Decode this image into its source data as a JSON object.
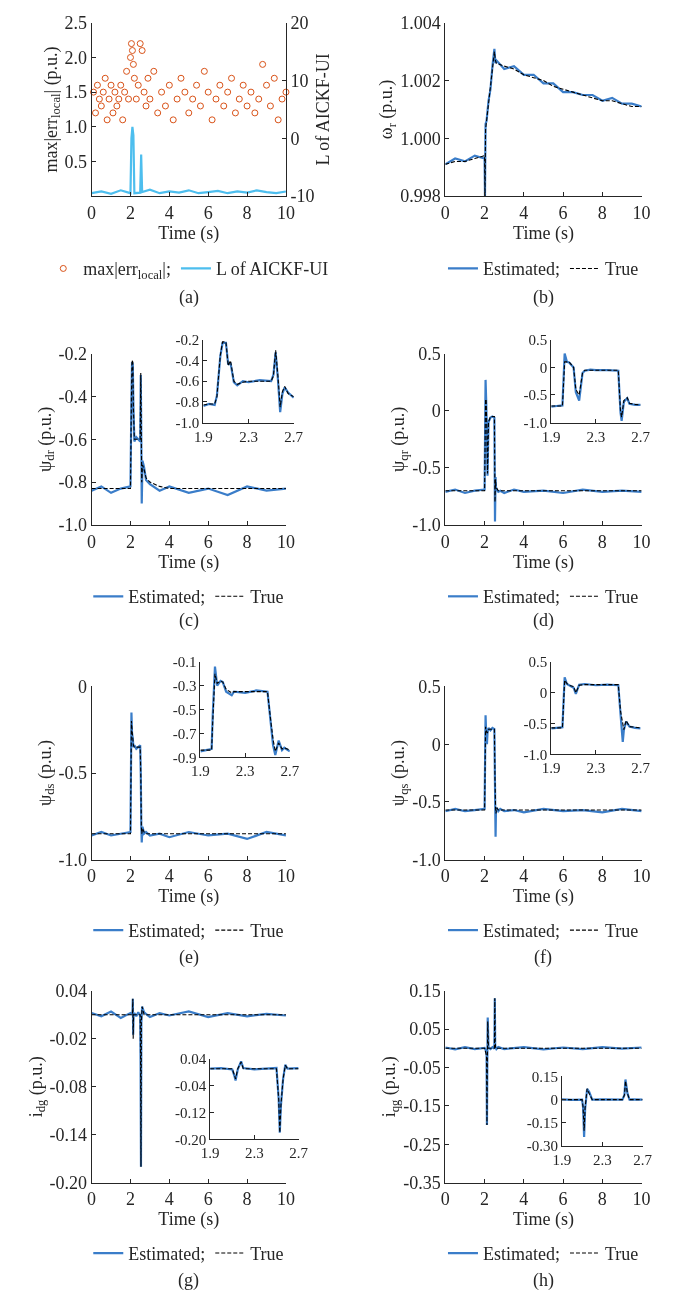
{
  "chart_data": [
    {
      "type": "line",
      "xlabel": "Time (s)",
      "ylabel": "max|err$_{local}$| (p.u.)",
      "y2label": "L of AICKF-UI",
      "xlim": [
        0,
        10
      ],
      "xticks": [
        0,
        2,
        4,
        6,
        8,
        10
      ],
      "ylim": [
        0,
        2.5
      ],
      "yticks": [
        0.5,
        {
          "value": 1,
          "label": "1.0"
        },
        1.5,
        {
          "value": 2,
          "label": "2.0"
        },
        2.5
      ],
      "y2lim": [
        -10,
        20
      ],
      "y2ticks": [
        -10,
        0,
        10,
        20
      ],
      "legend": "bottom",
      "annotations": [
        "(a)"
      ],
      "series": [
        {
          "name": "max|err$_{local}$|;",
          "type": "scatter",
          "marker": "circle",
          "color": "#d95319",
          "x": [
            0.1,
            0.2,
            0.3,
            0.4,
            0.5,
            0.6,
            0.7,
            0.8,
            0.9,
            1.0,
            1.1,
            1.2,
            1.3,
            1.4,
            1.5,
            1.6,
            1.7,
            1.8,
            1.9,
            2.0,
            2.05,
            2.1,
            2.15,
            2.2,
            2.3,
            2.4,
            2.5,
            2.6,
            2.7,
            2.8,
            2.9,
            3.0,
            3.2,
            3.4,
            3.6,
            3.8,
            4.0,
            4.2,
            4.4,
            4.6,
            4.8,
            5.0,
            5.2,
            5.4,
            5.6,
            5.8,
            6.0,
            6.2,
            6.4,
            6.6,
            6.8,
            7.0,
            7.2,
            7.4,
            7.6,
            7.8,
            8.0,
            8.2,
            8.4,
            8.6,
            8.8,
            9.0,
            9.2,
            9.4,
            9.6,
            9.8,
            10.0
          ],
          "values": [
            1.5,
            1.2,
            1.6,
            1.4,
            1.3,
            1.5,
            1.7,
            1.1,
            1.4,
            1.6,
            1.2,
            1.5,
            1.3,
            1.4,
            1.6,
            1.1,
            1.5,
            1.8,
            1.4,
            2.0,
            2.2,
            2.1,
            1.9,
            1.7,
            1.4,
            1.6,
            2.2,
            2.1,
            1.5,
            1.3,
            1.7,
            1.4,
            1.8,
            1.2,
            1.5,
            1.3,
            1.6,
            1.1,
            1.4,
            1.7,
            1.5,
            1.2,
            1.4,
            1.6,
            1.3,
            1.8,
            1.5,
            1.1,
            1.4,
            1.6,
            1.3,
            1.5,
            1.7,
            1.2,
            1.4,
            1.6,
            1.3,
            1.5,
            1.2,
            1.4,
            1.9,
            1.6,
            1.3,
            1.7,
            1.1,
            1.4,
            1.5
          ]
        },
        {
          "name": "L of AICKF-UI",
          "type": "line",
          "axis": "y2",
          "color": "#4dbeee",
          "line_style": "solid",
          "x": [
            0,
            0.5,
            1.0,
            1.5,
            1.9,
            2.0,
            2.05,
            2.1,
            2.15,
            2.2,
            2.5,
            2.55,
            2.6,
            3.0,
            3.5,
            4,
            4.5,
            5,
            5.5,
            6,
            6.5,
            7,
            7.5,
            8,
            8.5,
            9,
            9.5,
            10
          ],
          "values": [
            -9.5,
            -9.2,
            -9.6,
            -9.0,
            -9.4,
            -9.5,
            0,
            2,
            0.5,
            -9.5,
            -9.4,
            -2.8,
            -9.3,
            -8.9,
            -9.5,
            -9.2,
            -9.4,
            -9.0,
            -9.5,
            -9.3,
            -9.1,
            -9.5,
            -9.2,
            -9.4,
            -9.0,
            -9.3,
            -9.5,
            -9.2
          ]
        }
      ]
    },
    {
      "type": "line",
      "xlabel": "Time (s)",
      "ylabel": "ω$_{r}$ (p.u.)",
      "xlim": [
        0,
        10
      ],
      "xticks": [
        0,
        2,
        4,
        6,
        8,
        10
      ],
      "ylim": [
        0.998,
        1.004
      ],
      "yticks": [
        0.998,
        {
          "value": 1,
          "label": "1.000"
        },
        1.002,
        1.004
      ],
      "legend": "bottom",
      "annotations": [
        "(b)"
      ],
      "x": [
        0,
        0.5,
        1,
        1.5,
        2.0,
        2.02,
        2.05,
        2.1,
        2.2,
        2.3,
        2.4,
        2.5,
        2.55,
        2.6,
        3,
        3.5,
        4,
        4.5,
        5,
        5.5,
        6,
        6.5,
        7,
        7.5,
        8,
        8.5,
        9,
        9.5,
        10
      ],
      "series": [
        {
          "name": "Estimated;",
          "color": "#3a7dc9",
          "line_style": "solid",
          "values": [
            0.9991,
            0.9993,
            0.9992,
            0.9994,
            0.9993,
            0.998,
            1.0005,
            1.0006,
            1.0013,
            1.0017,
            1.0025,
            1.0031,
            1.0026,
            1.0027,
            1.0024,
            1.0025,
            1.0022,
            1.0022,
            1.0019,
            1.0019,
            1.0016,
            1.0016,
            1.0015,
            1.0015,
            1.0013,
            1.0014,
            1.0012,
            1.0012,
            1.0011
          ]
        },
        {
          "name": "True",
          "color": "#000000",
          "line_style": "dashed",
          "values": [
            0.9991,
            0.9992,
            0.9992,
            0.9993,
            0.9994,
            0.998,
            1.0003,
            1.0006,
            1.0012,
            1.0018,
            1.0024,
            1.003,
            1.0027,
            1.0026,
            1.0025,
            1.0024,
            1.0022,
            1.0021,
            1.002,
            1.0018,
            1.0017,
            1.0016,
            1.0015,
            1.0014,
            1.0013,
            1.0013,
            1.0012,
            1.0011,
            1.0011
          ]
        }
      ]
    },
    {
      "type": "line",
      "xlabel": "Time (s)",
      "ylabel": "ψ$_{dr}$ (p.u.)",
      "xlim": [
        0,
        10
      ],
      "xticks": [
        0,
        2,
        4,
        6,
        8,
        10
      ],
      "ylim": [
        -1,
        -0.2
      ],
      "yticks": [
        {
          "value": -1,
          "label": "-1.0"
        },
        -0.8,
        -0.6,
        -0.4,
        -0.2
      ],
      "legend": "bottom",
      "annotations": [
        "(c)"
      ],
      "x": [
        0,
        0.5,
        1,
        1.5,
        2.0,
        2.05,
        2.08,
        2.12,
        2.15,
        2.2,
        2.3,
        2.4,
        2.5,
        2.53,
        2.56,
        2.58,
        2.62,
        2.7,
        2.8,
        3,
        3.5,
        4,
        5,
        6,
        7,
        8,
        9,
        10
      ],
      "series": [
        {
          "name": "Estimated;",
          "color": "#3a7dc9",
          "line_style": "solid",
          "values": [
            -0.84,
            -0.82,
            -0.85,
            -0.83,
            -0.82,
            -0.41,
            -0.24,
            -0.25,
            -0.44,
            -0.61,
            -0.59,
            -0.6,
            -0.61,
            -0.3,
            -0.62,
            -0.9,
            -0.7,
            -0.73,
            -0.79,
            -0.81,
            -0.84,
            -0.82,
            -0.85,
            -0.83,
            -0.86,
            -0.82,
            -0.84,
            -0.83
          ]
        },
        {
          "name": "True",
          "color": "#000000",
          "line_style": "dashed",
          "values": [
            -0.83,
            -0.83,
            -0.83,
            -0.83,
            -0.83,
            -0.4,
            -0.23,
            -0.24,
            -0.45,
            -0.6,
            -0.6,
            -0.6,
            -0.6,
            -0.29,
            -0.6,
            -0.8,
            -0.72,
            -0.74,
            -0.78,
            -0.8,
            -0.82,
            -0.83,
            -0.83,
            -0.83,
            -0.83,
            -0.83,
            -0.83,
            -0.83
          ]
        }
      ]
    },
    {
      "type": "line",
      "xlim": [
        1.9,
        2.7
      ],
      "xticks": [
        1.9,
        2.3,
        2.7
      ],
      "ylim": [
        -1,
        -0.2
      ],
      "yticks": [
        {
          "value": -1,
          "label": "-1.0"
        },
        -0.8,
        -0.6,
        -0.4,
        -0.2
      ],
      "x": [
        1.9,
        1.95,
        2.0,
        2.02,
        2.05,
        2.07,
        2.1,
        2.12,
        2.14,
        2.17,
        2.2,
        2.25,
        2.3,
        2.4,
        2.5,
        2.52,
        2.54,
        2.56,
        2.58,
        2.6,
        2.62,
        2.65,
        2.7
      ],
      "series": [
        {
          "color": "#3a7dc9",
          "line_style": "solid",
          "values": [
            -0.84,
            -0.82,
            -0.83,
            -0.74,
            -0.36,
            -0.23,
            -0.23,
            -0.44,
            -0.42,
            -0.61,
            -0.64,
            -0.6,
            -0.61,
            -0.59,
            -0.6,
            -0.54,
            -0.32,
            -0.58,
            -0.9,
            -0.72,
            -0.66,
            -0.71,
            -0.76
          ]
        },
        {
          "color": "#000000",
          "line_style": "dashed",
          "values": [
            -0.83,
            -0.82,
            -0.82,
            -0.75,
            -0.35,
            -0.22,
            -0.22,
            -0.45,
            -0.4,
            -0.6,
            -0.63,
            -0.61,
            -0.6,
            -0.6,
            -0.6,
            -0.55,
            -0.3,
            -0.55,
            -0.85,
            -0.7,
            -0.65,
            -0.72,
            -0.75
          ]
        }
      ]
    },
    {
      "type": "line",
      "xlabel": "Time (s)",
      "ylabel": "ψ$_{qr}$ (p.u.)",
      "xlim": [
        0,
        10
      ],
      "xticks": [
        0,
        2,
        4,
        6,
        8,
        10
      ],
      "ylim": [
        -1,
        0.5
      ],
      "yticks": [
        {
          "value": -1,
          "label": "-1.0"
        },
        -0.5,
        0,
        0.5
      ],
      "legend": "bottom",
      "annotations": [
        "(d)"
      ],
      "x": [
        0,
        0.5,
        1,
        1.5,
        2.0,
        2.05,
        2.08,
        2.12,
        2.15,
        2.2,
        2.3,
        2.4,
        2.5,
        2.53,
        2.56,
        2.58,
        2.62,
        2.7,
        2.8,
        3,
        3.5,
        4,
        5,
        6,
        7,
        8,
        9,
        10
      ],
      "series": [
        {
          "name": "Estimated;",
          "color": "#3a7dc9",
          "line_style": "solid",
          "values": [
            -0.71,
            -0.69,
            -0.72,
            -0.7,
            -0.69,
            0.27,
            0.1,
            -0.2,
            -0.57,
            -0.1,
            -0.06,
            -0.05,
            -0.06,
            -0.97,
            -0.58,
            -0.67,
            -0.69,
            -0.71,
            -0.7,
            -0.72,
            -0.69,
            -0.71,
            -0.7,
            -0.72,
            -0.69,
            -0.71,
            -0.7,
            -0.71
          ]
        },
        {
          "name": "True",
          "color": "#000000",
          "line_style": "dashed",
          "values": [
            -0.7,
            -0.7,
            -0.7,
            -0.7,
            -0.7,
            0.1,
            0.1,
            -0.2,
            -0.55,
            -0.1,
            -0.05,
            -0.05,
            -0.05,
            -0.8,
            -0.6,
            -0.66,
            -0.68,
            -0.7,
            -0.7,
            -0.7,
            -0.7,
            -0.7,
            -0.7,
            -0.7,
            -0.7,
            -0.7,
            -0.7,
            -0.7
          ]
        }
      ]
    },
    {
      "type": "line",
      "xlim": [
        1.9,
        2.7
      ],
      "xticks": [
        1.9,
        2.3,
        2.7
      ],
      "ylim": [
        -1,
        0.5
      ],
      "yticks": [
        {
          "value": -1,
          "label": "-1.0"
        },
        -0.5,
        0,
        0.5
      ],
      "x": [
        1.9,
        1.95,
        2.0,
        2.02,
        2.04,
        2.06,
        2.1,
        2.12,
        2.15,
        2.18,
        2.2,
        2.25,
        2.3,
        2.4,
        2.5,
        2.52,
        2.53,
        2.55,
        2.58,
        2.6,
        2.65,
        2.7
      ],
      "series": [
        {
          "color": "#3a7dc9",
          "line_style": "solid",
          "values": [
            -0.71,
            -0.7,
            -0.69,
            0.25,
            0.1,
            0.09,
            0.0,
            -0.45,
            -0.6,
            -0.1,
            -0.06,
            -0.04,
            -0.05,
            -0.05,
            -0.06,
            -0.82,
            -0.97,
            -0.62,
            -0.56,
            -0.66,
            -0.68,
            -0.68
          ]
        },
        {
          "color": "#000000",
          "line_style": "dashed",
          "values": [
            -0.7,
            -0.7,
            -0.7,
            0.1,
            0.1,
            0.1,
            0.0,
            -0.4,
            -0.5,
            -0.1,
            -0.05,
            -0.05,
            -0.05,
            -0.05,
            -0.05,
            -0.8,
            -0.9,
            -0.6,
            -0.55,
            -0.65,
            -0.67,
            -0.68
          ]
        }
      ]
    },
    {
      "type": "line",
      "xlabel": "Time (s)",
      "ylabel": "ψ$_{ds}$ (p.u.)",
      "xlim": [
        0,
        10
      ],
      "xticks": [
        0,
        2,
        4,
        6,
        8,
        10
      ],
      "ylim": [
        -1,
        0
      ],
      "yticks": [
        {
          "value": -1,
          "label": "-1.0"
        },
        -0.5,
        0
      ],
      "legend": "bottom",
      "annotations": [
        "(e)"
      ],
      "x": [
        0,
        0.5,
        1,
        1.5,
        2.0,
        2.05,
        2.08,
        2.12,
        2.15,
        2.2,
        2.3,
        2.4,
        2.5,
        2.53,
        2.56,
        2.58,
        2.62,
        2.7,
        2.8,
        3,
        3.5,
        4,
        5,
        6,
        7,
        8,
        9,
        10
      ],
      "series": [
        {
          "name": "Estimated;",
          "color": "#3a7dc9",
          "line_style": "solid",
          "values": [
            -0.86,
            -0.84,
            -0.86,
            -0.85,
            -0.84,
            -0.15,
            -0.27,
            -0.3,
            -0.35,
            -0.34,
            -0.36,
            -0.35,
            -0.34,
            -0.5,
            -0.82,
            -0.9,
            -0.81,
            -0.85,
            -0.84,
            -0.86,
            -0.85,
            -0.87,
            -0.84,
            -0.86,
            -0.85,
            -0.88,
            -0.84,
            -0.86
          ]
        },
        {
          "name": "True",
          "color": "#000000",
          "line_style": "dashed",
          "values": [
            -0.85,
            -0.85,
            -0.85,
            -0.85,
            -0.85,
            -0.2,
            -0.25,
            -0.3,
            -0.34,
            -0.35,
            -0.35,
            -0.35,
            -0.35,
            -0.5,
            -0.8,
            -0.85,
            -0.82,
            -0.84,
            -0.85,
            -0.85,
            -0.85,
            -0.85,
            -0.85,
            -0.85,
            -0.85,
            -0.85,
            -0.85,
            -0.85
          ]
        }
      ]
    },
    {
      "type": "line",
      "xlim": [
        1.9,
        2.7
      ],
      "xticks": [
        1.9,
        2.3,
        2.7
      ],
      "ylim": [
        -0.9,
        -0.1
      ],
      "yticks": [
        -0.9,
        -0.7,
        -0.5,
        -0.3,
        -0.1
      ],
      "x": [
        1.9,
        1.95,
        2.0,
        2.01,
        2.03,
        2.05,
        2.08,
        2.1,
        2.13,
        2.18,
        2.2,
        2.3,
        2.4,
        2.5,
        2.53,
        2.55,
        2.57,
        2.6,
        2.63,
        2.65,
        2.7
      ],
      "series": [
        {
          "color": "#3a7dc9",
          "line_style": "solid",
          "values": [
            -0.85,
            -0.84,
            -0.83,
            -0.55,
            -0.14,
            -0.3,
            -0.26,
            -0.27,
            -0.35,
            -0.38,
            -0.35,
            -0.36,
            -0.34,
            -0.35,
            -0.62,
            -0.8,
            -0.88,
            -0.76,
            -0.84,
            -0.82,
            -0.85
          ]
        },
        {
          "color": "#000000",
          "line_style": "dashed",
          "values": [
            -0.84,
            -0.84,
            -0.84,
            -0.6,
            -0.2,
            -0.28,
            -0.26,
            -0.27,
            -0.33,
            -0.36,
            -0.35,
            -0.35,
            -0.35,
            -0.35,
            -0.6,
            -0.75,
            -0.85,
            -0.78,
            -0.83,
            -0.82,
            -0.84
          ]
        }
      ]
    },
    {
      "type": "line",
      "xlabel": "Time (s)",
      "ylabel": "ψ$_{qs}$ (p.u.)",
      "xlim": [
        0,
        10
      ],
      "xticks": [
        0,
        2,
        4,
        6,
        8,
        10
      ],
      "ylim": [
        -1,
        0.5
      ],
      "yticks": [
        {
          "value": -1,
          "label": "-1.0"
        },
        -0.5,
        0,
        0.5
      ],
      "legend": "bottom",
      "annotations": [
        "(f)"
      ],
      "x": [
        0,
        0.5,
        1,
        1.5,
        2.0,
        2.05,
        2.08,
        2.12,
        2.15,
        2.2,
        2.3,
        2.4,
        2.5,
        2.53,
        2.56,
        2.58,
        2.62,
        2.7,
        2.8,
        3,
        3.5,
        4,
        5,
        6,
        7,
        8,
        9,
        10
      ],
      "series": [
        {
          "name": "Estimated;",
          "color": "#3a7dc9",
          "line_style": "solid",
          "values": [
            -0.58,
            -0.56,
            -0.58,
            -0.57,
            -0.56,
            0.25,
            0.1,
            0.0,
            0.1,
            0.14,
            0.12,
            0.14,
            0.13,
            -0.35,
            -0.8,
            -0.58,
            -0.55,
            -0.58,
            -0.56,
            -0.58,
            -0.57,
            -0.59,
            -0.56,
            -0.58,
            -0.57,
            -0.59,
            -0.56,
            -0.58
          ]
        },
        {
          "name": "True",
          "color": "#000000",
          "line_style": "dashed",
          "values": [
            -0.57,
            -0.57,
            -0.57,
            -0.57,
            -0.57,
            0.15,
            0.12,
            0.1,
            0.1,
            0.13,
            0.13,
            0.13,
            0.13,
            -0.3,
            -0.55,
            -0.6,
            -0.55,
            -0.57,
            -0.57,
            -0.57,
            -0.57,
            -0.57,
            -0.57,
            -0.57,
            -0.57,
            -0.57,
            -0.57,
            -0.57
          ]
        }
      ]
    },
    {
      "type": "line",
      "xlim": [
        1.9,
        2.7
      ],
      "xticks": [
        1.9,
        2.3,
        2.7
      ],
      "ylim": [
        -1,
        0.5
      ],
      "yticks": [
        {
          "value": -1,
          "label": "-1.0"
        },
        -0.5,
        0,
        0.5
      ],
      "x": [
        1.9,
        1.95,
        2.0,
        2.02,
        2.04,
        2.06,
        2.1,
        2.12,
        2.15,
        2.2,
        2.3,
        2.4,
        2.5,
        2.52,
        2.54,
        2.55,
        2.57,
        2.6,
        2.65,
        2.7
      ],
      "series": [
        {
          "color": "#3a7dc9",
          "line_style": "solid",
          "values": [
            -0.58,
            -0.57,
            -0.56,
            0.25,
            0.14,
            0.12,
            0.08,
            -0.02,
            0.13,
            0.14,
            0.12,
            0.13,
            0.12,
            -0.35,
            -0.8,
            -0.6,
            -0.47,
            -0.55,
            -0.57,
            -0.58
          ]
        },
        {
          "color": "#000000",
          "line_style": "dashed",
          "values": [
            -0.57,
            -0.57,
            -0.57,
            0.2,
            0.15,
            0.12,
            0.1,
            0.0,
            0.12,
            0.13,
            0.13,
            0.13,
            0.13,
            -0.3,
            -0.5,
            -0.6,
            -0.45,
            -0.55,
            -0.56,
            -0.57
          ]
        }
      ]
    },
    {
      "type": "line",
      "xlabel": "Time (s)",
      "ylabel": "i$_{dg}$ (p.u.)",
      "xlim": [
        0,
        10
      ],
      "xticks": [
        0,
        2,
        4,
        6,
        8,
        10
      ],
      "ylim": [
        -0.2,
        0.04
      ],
      "yticks": [
        {
          "value": -0.2,
          "label": "-0.20"
        },
        -0.14,
        -0.08,
        -0.02,
        0.04
      ],
      "legend": "bottom",
      "annotations": [
        "(g)"
      ],
      "x": [
        0,
        0.5,
        1,
        1.5,
        2,
        2.1,
        2.12,
        2.14,
        2.16,
        2.2,
        2.3,
        2.4,
        2.5,
        2.52,
        2.54,
        2.56,
        2.6,
        2.7,
        3,
        3.5,
        4,
        5,
        6,
        7,
        8,
        9,
        10
      ],
      "series": [
        {
          "name": "Estimated;",
          "color": "#3a7dc9",
          "line_style": "solid",
          "values": [
            0.012,
            0.008,
            0.014,
            0.006,
            0.012,
            0.01,
            0.03,
            -0.015,
            0.01,
            0.012,
            0.008,
            0.013,
            0.009,
            -0.05,
            -0.18,
            0.0,
            0.02,
            0.013,
            0.007,
            0.012,
            0.009,
            0.014,
            0.007,
            0.012,
            0.008,
            0.011,
            0.009
          ]
        },
        {
          "name": "True",
          "color": "#000000",
          "line_style": "dashed",
          "values": [
            0.01,
            0.01,
            0.01,
            0.01,
            0.01,
            0.01,
            0.03,
            -0.02,
            0.01,
            0.01,
            0.01,
            0.01,
            0.01,
            -0.05,
            -0.18,
            0.0,
            0.02,
            0.01,
            0.01,
            0.01,
            0.01,
            0.01,
            0.01,
            0.01,
            0.01,
            0.01,
            0.01
          ]
        }
      ]
    },
    {
      "type": "line",
      "xlim": [
        1.9,
        2.7
      ],
      "xticks": [
        1.9,
        2.3,
        2.7
      ],
      "ylim": [
        -0.2,
        0.04
      ],
      "yticks": [
        {
          "value": -0.2,
          "label": "-0.20"
        },
        -0.12,
        -0.04,
        0.04
      ],
      "x": [
        1.9,
        2.0,
        2.1,
        2.12,
        2.13,
        2.15,
        2.18,
        2.2,
        2.3,
        2.4,
        2.5,
        2.52,
        2.53,
        2.54,
        2.56,
        2.58,
        2.6,
        2.7
      ],
      "series": [
        {
          "color": "#3a7dc9",
          "line_style": "solid",
          "values": [
            0.01,
            0.012,
            0.008,
            -0.012,
            -0.025,
            0.008,
            0.032,
            0.012,
            0.008,
            0.01,
            0.012,
            -0.08,
            -0.18,
            -0.1,
            -0.02,
            0.022,
            0.01,
            0.012
          ]
        },
        {
          "color": "#000000",
          "line_style": "dashed",
          "values": [
            0.01,
            0.01,
            0.01,
            -0.01,
            -0.02,
            0.01,
            0.03,
            0.01,
            0.01,
            0.01,
            0.01,
            -0.08,
            -0.18,
            -0.1,
            -0.02,
            0.02,
            0.01,
            0.01
          ]
        }
      ]
    },
    {
      "type": "line",
      "xlabel": "Time (s)",
      "ylabel": "i$_{qg}$ (p.u.)",
      "xlim": [
        0,
        10
      ],
      "xticks": [
        0,
        2,
        4,
        6,
        8,
        10
      ],
      "ylim": [
        -0.35,
        0.15
      ],
      "yticks": [
        -0.35,
        -0.25,
        -0.15,
        -0.05,
        0.05,
        0.15
      ],
      "legend": "bottom",
      "annotations": [
        "(h)"
      ],
      "x": [
        0,
        0.5,
        1,
        1.5,
        2,
        2.1,
        2.12,
        2.14,
        2.16,
        2.2,
        2.3,
        2.4,
        2.5,
        2.52,
        2.54,
        2.56,
        2.6,
        2.7,
        3,
        4,
        5,
        6,
        7,
        8,
        9,
        10
      ],
      "series": [
        {
          "name": "Estimated;",
          "color": "#3a7dc9",
          "line_style": "solid",
          "values": [
            0.002,
            -0.003,
            0.003,
            -0.002,
            0.001,
            -0.01,
            -0.2,
            -0.03,
            0.08,
            0.002,
            -0.002,
            0.003,
            -0.001,
            0.13,
            0.01,
            0.002,
            -0.002,
            0.003,
            -0.002,
            0.003,
            -0.003,
            0.002,
            -0.002,
            0.003,
            -0.001,
            0.002
          ]
        },
        {
          "name": "True",
          "color": "#000000",
          "line_style": "dashed",
          "values": [
            0,
            0,
            0,
            0,
            0,
            -0.02,
            -0.2,
            -0.05,
            0.07,
            0,
            0,
            0,
            0,
            0.13,
            0.02,
            0,
            0,
            0,
            0,
            0,
            0,
            0,
            0,
            0,
            0,
            0
          ]
        }
      ]
    },
    {
      "type": "line",
      "xlim": [
        1.9,
        2.7
      ],
      "xticks": [
        1.9,
        2.3,
        2.7
      ],
      "ylim": [
        -0.3,
        0.15
      ],
      "yticks": [
        {
          "value": -0.3,
          "label": "-0.30"
        },
        -0.15,
        0,
        0.15
      ],
      "x": [
        1.9,
        2.0,
        2.1,
        2.11,
        2.12,
        2.13,
        2.15,
        2.17,
        2.2,
        2.3,
        2.5,
        2.52,
        2.53,
        2.55,
        2.57,
        2.6,
        2.7
      ],
      "series": [
        {
          "color": "#3a7dc9",
          "line_style": "solid",
          "values": [
            0.002,
            -0.002,
            0.0,
            -0.05,
            -0.24,
            -0.06,
            0.07,
            0.05,
            0.0,
            0.002,
            0.0,
            0.03,
            0.13,
            0.04,
            0.0,
            0.002,
            0
          ]
        },
        {
          "color": "#000000",
          "line_style": "dashed",
          "values": [
            0,
            0,
            0,
            -0.05,
            -0.2,
            -0.05,
            0.07,
            0.04,
            0,
            0,
            0,
            0.03,
            0.12,
            0.04,
            0,
            0,
            0
          ]
        }
      ]
    }
  ]
}
